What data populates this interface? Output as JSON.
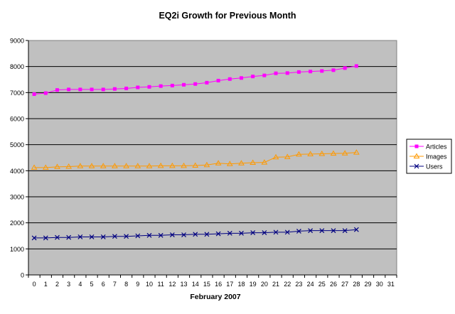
{
  "chart_data": {
    "type": "line",
    "title": "EQ2i Growth for Previous Month",
    "xlabel": "February 2007",
    "ylabel": "",
    "x_ticks": [
      0,
      1,
      2,
      3,
      4,
      5,
      6,
      7,
      8,
      9,
      10,
      11,
      12,
      13,
      14,
      15,
      16,
      17,
      18,
      19,
      20,
      21,
      22,
      23,
      24,
      25,
      26,
      27,
      28,
      29,
      30,
      31
    ],
    "xlim": [
      0,
      31
    ],
    "ylim": [
      0,
      9000
    ],
    "y_ticks": [
      0,
      1000,
      2000,
      3000,
      4000,
      5000,
      6000,
      7000,
      8000,
      9000
    ],
    "grid": "horizontal",
    "legend_position": "right",
    "plot_background": "#c0c0c0",
    "x": [
      0,
      1,
      2,
      3,
      4,
      5,
      6,
      7,
      8,
      9,
      10,
      11,
      12,
      13,
      14,
      15,
      16,
      17,
      18,
      19,
      20,
      21,
      22,
      23,
      24,
      25,
      26,
      27,
      28
    ],
    "series": [
      {
        "name": "Articles",
        "color": "#ff00ff",
        "marker": "square",
        "values": [
          6940,
          6980,
          7100,
          7120,
          7120,
          7120,
          7120,
          7140,
          7160,
          7200,
          7220,
          7250,
          7270,
          7300,
          7330,
          7380,
          7460,
          7520,
          7560,
          7620,
          7660,
          7740,
          7750,
          7790,
          7810,
          7830,
          7860,
          7940,
          8020
        ]
      },
      {
        "name": "Images",
        "color": "#ff9900",
        "marker": "triangle",
        "values": [
          4120,
          4120,
          4150,
          4160,
          4180,
          4180,
          4180,
          4180,
          4180,
          4180,
          4180,
          4190,
          4190,
          4190,
          4200,
          4220,
          4290,
          4260,
          4290,
          4310,
          4320,
          4520,
          4530,
          4630,
          4640,
          4650,
          4660,
          4670,
          4700
        ]
      },
      {
        "name": "Users",
        "color": "#000080",
        "marker": "x",
        "values": [
          1420,
          1420,
          1440,
          1440,
          1460,
          1460,
          1460,
          1480,
          1480,
          1500,
          1520,
          1520,
          1540,
          1540,
          1560,
          1560,
          1580,
          1600,
          1600,
          1620,
          1620,
          1640,
          1640,
          1680,
          1700,
          1700,
          1700,
          1700,
          1740
        ]
      }
    ]
  }
}
